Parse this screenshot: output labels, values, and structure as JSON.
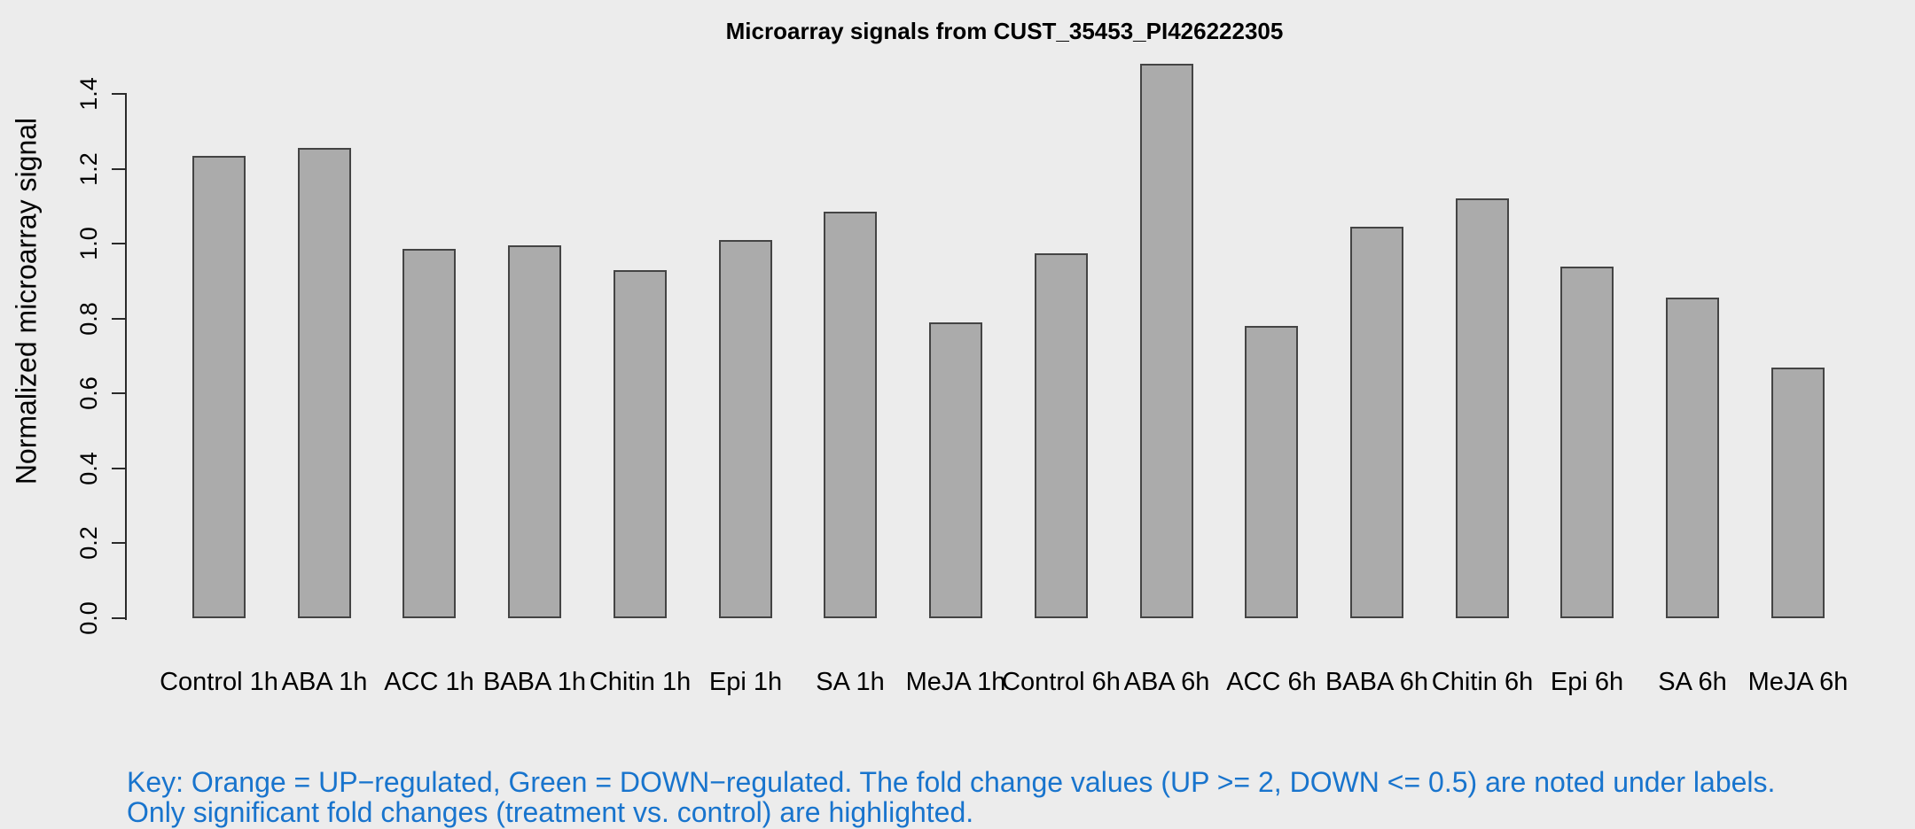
{
  "chart_data": {
    "type": "bar",
    "title": "Microarray signals from CUST_35453_PI426222305",
    "xlabel": "",
    "ylabel": "Normalized microarray signal",
    "categories": [
      "Control 1h",
      "ABA 1h",
      "ACC 1h",
      "BABA 1h",
      "Chitin 1h",
      "Epi 1h",
      "SA 1h",
      "MeJA 1h",
      "Control 6h",
      "ABA 6h",
      "ACC 6h",
      "BABA 6h",
      "Chitin 6h",
      "Epi 6h",
      "SA 6h",
      "MeJA 6h"
    ],
    "values": [
      1.235,
      1.255,
      0.985,
      0.995,
      0.93,
      1.01,
      1.085,
      0.79,
      0.975,
      1.48,
      0.78,
      1.045,
      1.12,
      0.94,
      0.855,
      0.67
    ],
    "ylim": [
      0,
      1.4
    ],
    "ytick_step": 0.2,
    "yticks": [
      "0.0",
      "0.2",
      "0.4",
      "0.6",
      "0.8",
      "1.0",
      "1.2",
      "1.4"
    ],
    "grid": false,
    "legend_position": "none",
    "bar_fill_color": "#ABABAB",
    "bar_border_color": "#444444",
    "axis_color": "#2a2a2a"
  },
  "annotations": {
    "key_line1": "Key: Orange = UP−regulated, Green = DOWN−regulated. The fold change values (UP >= 2, DOWN <= 0.5) are noted under labels.",
    "key_line2": "Only significant fold changes (treatment vs. control) are highlighted.",
    "key_text_color": "#1874CD"
  },
  "colors": {
    "background": "#ECECEC",
    "text": "#000000"
  }
}
